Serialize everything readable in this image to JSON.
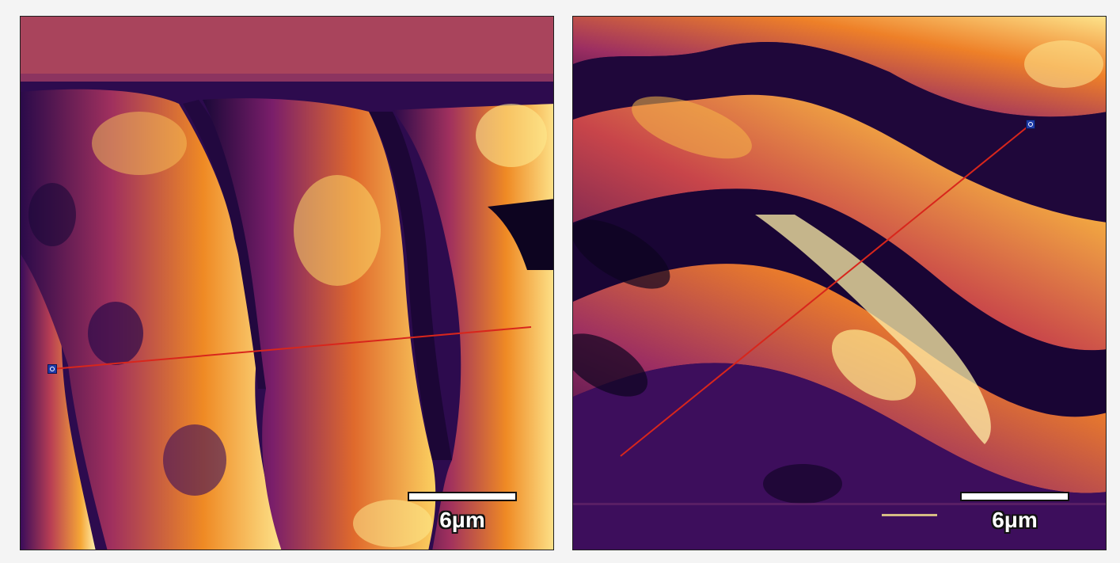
{
  "figure": {
    "panels": [
      {
        "id": "left",
        "scale_bar_label": "6μm",
        "profile_line_color": "#d8261c",
        "marker_color": "#1e3aa8"
      },
      {
        "id": "right",
        "scale_bar_label": "6μm",
        "profile_line_color": "#d8261c",
        "marker_color": "#1e3aa8"
      }
    ],
    "colormap": [
      "#000004",
      "#1b0c41",
      "#4a0c6b",
      "#781c6d",
      "#a52c60",
      "#cf4446",
      "#ed6925",
      "#fb9b06",
      "#f7d13d",
      "#fcffa4"
    ],
    "background_color": "#f4f4f4"
  }
}
